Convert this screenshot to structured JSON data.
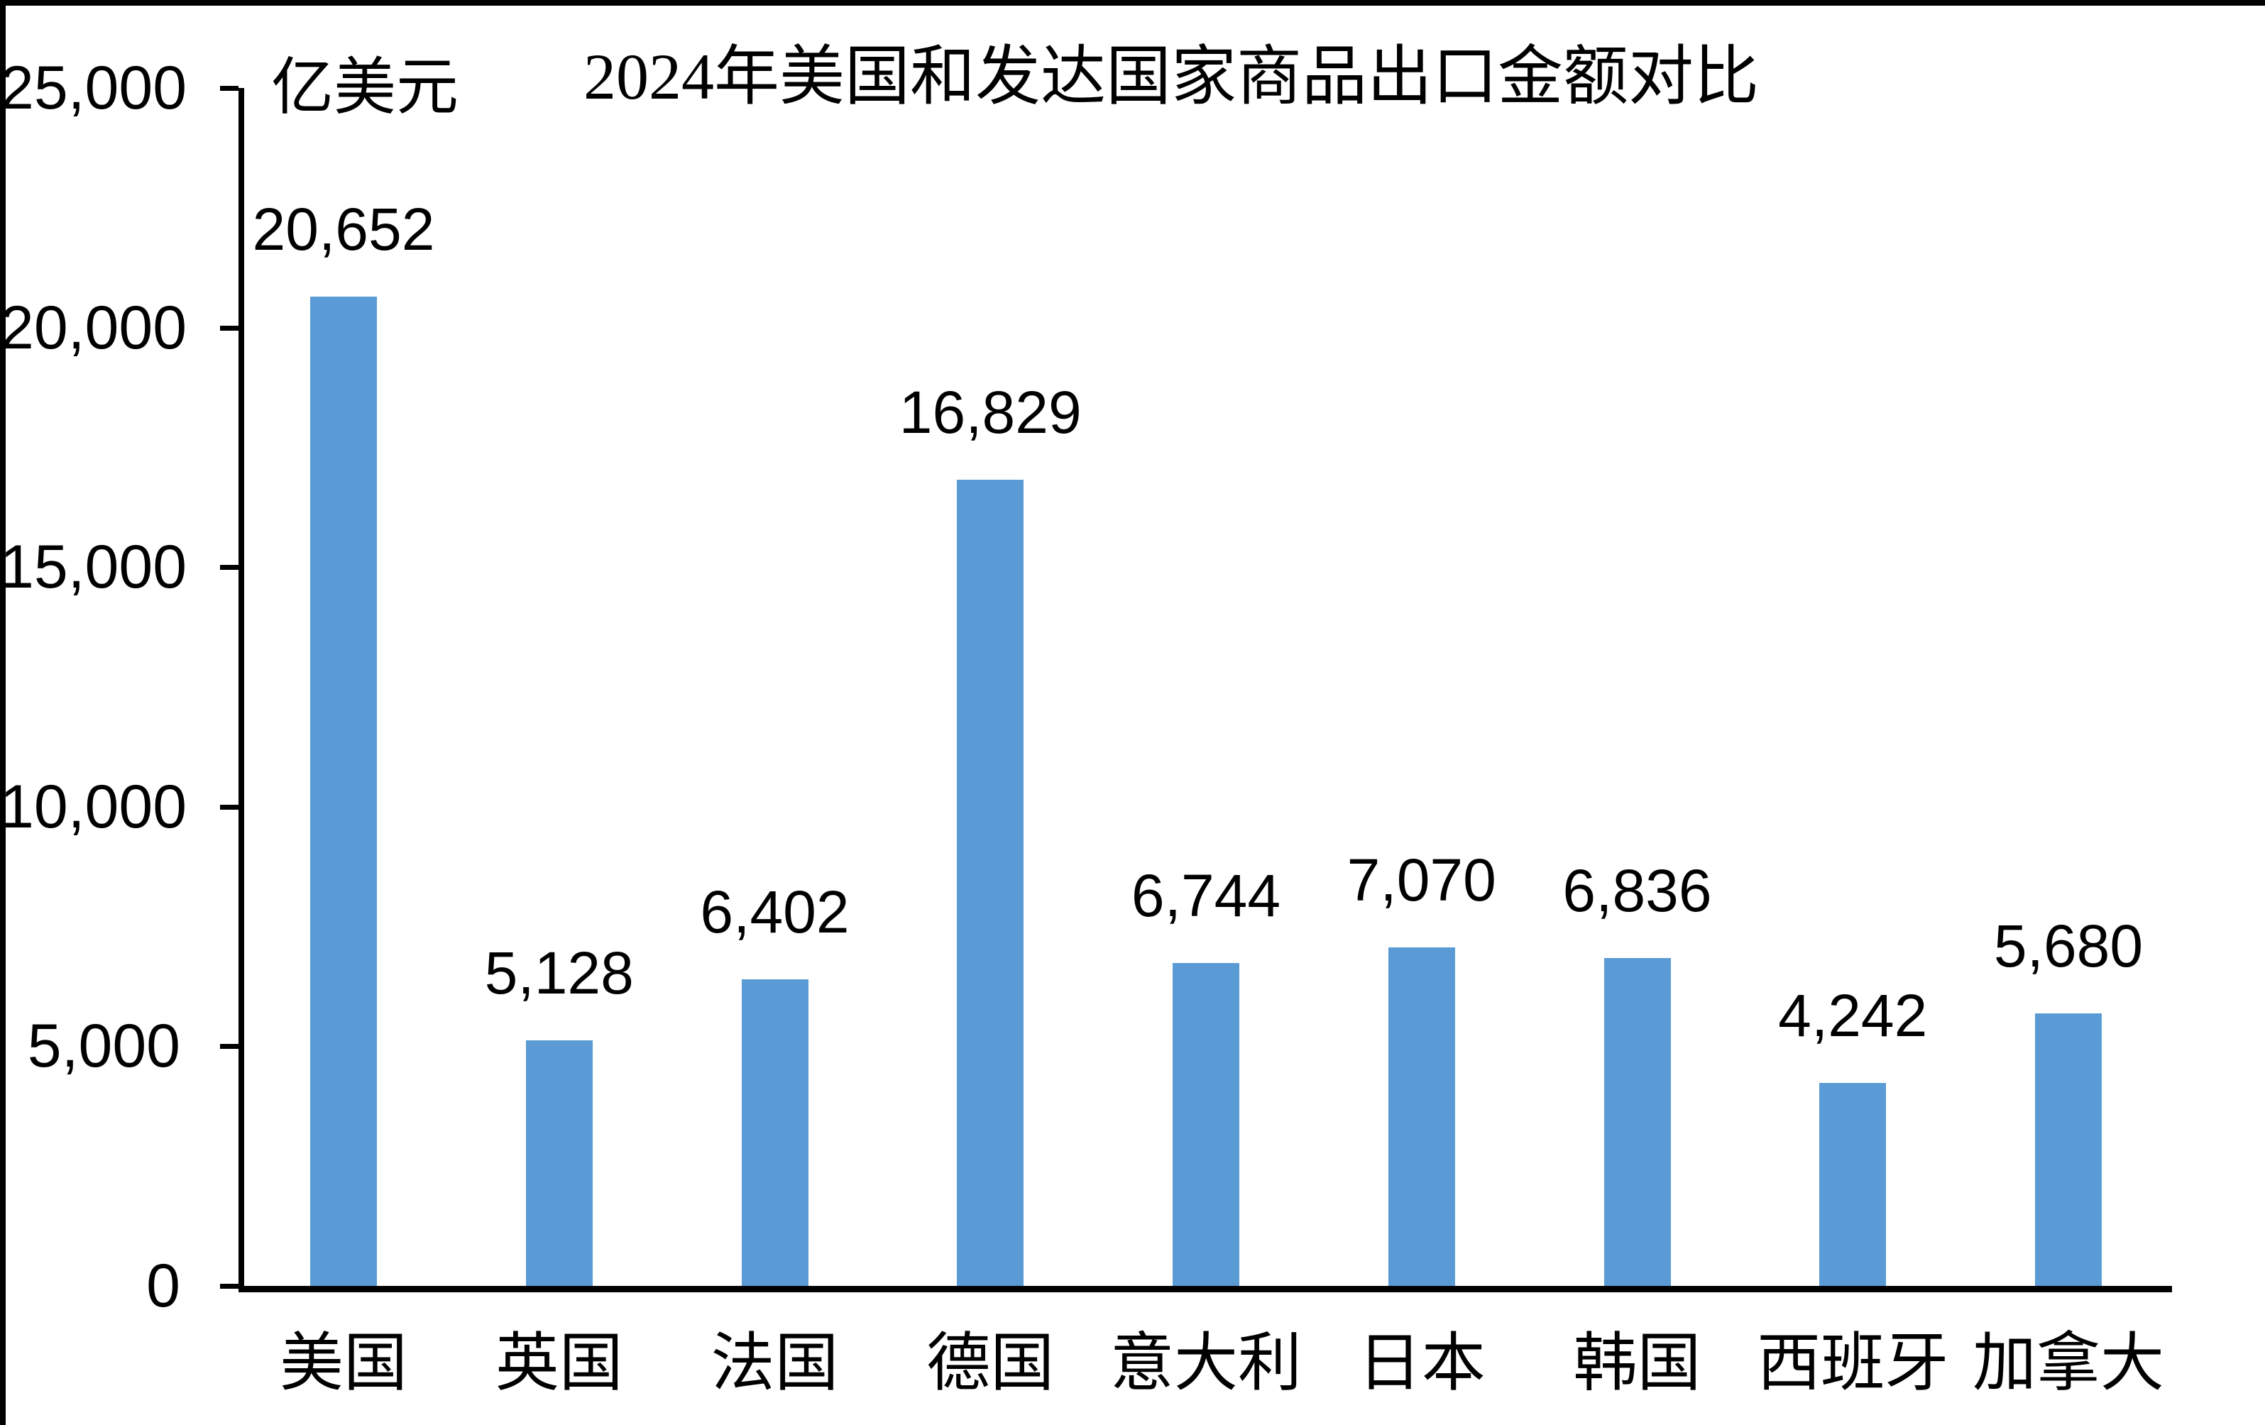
{
  "chart_data": {
    "type": "bar",
    "title": "2024年美国和发达国家商品出口金额对比",
    "unit_label": "亿美元",
    "categories": [
      "美国",
      "英国",
      "法国",
      "德国",
      "意大利",
      "日本",
      "韩国",
      "西班牙",
      "加拿大"
    ],
    "values": [
      20652,
      5128,
      6402,
      16829,
      6744,
      7070,
      6836,
      4242,
      5680
    ],
    "value_labels": [
      "20,652",
      "5,128",
      "6,402",
      "16,829",
      "6,744",
      "7,070",
      "6,836",
      "4,242",
      "5,680"
    ],
    "ylim": [
      0,
      25000
    ],
    "yticks": [
      0,
      5000,
      10000,
      15000,
      20000,
      25000
    ],
    "ytick_labels": [
      "0",
      "5,000",
      "10,000",
      "15,000",
      "20,000",
      "25,000"
    ],
    "grid": false,
    "legend": false,
    "bar_color": "#5B9BD5",
    "axis_color": "#000000",
    "text_color": "#000000",
    "background_color": "#FFFFFF"
  }
}
